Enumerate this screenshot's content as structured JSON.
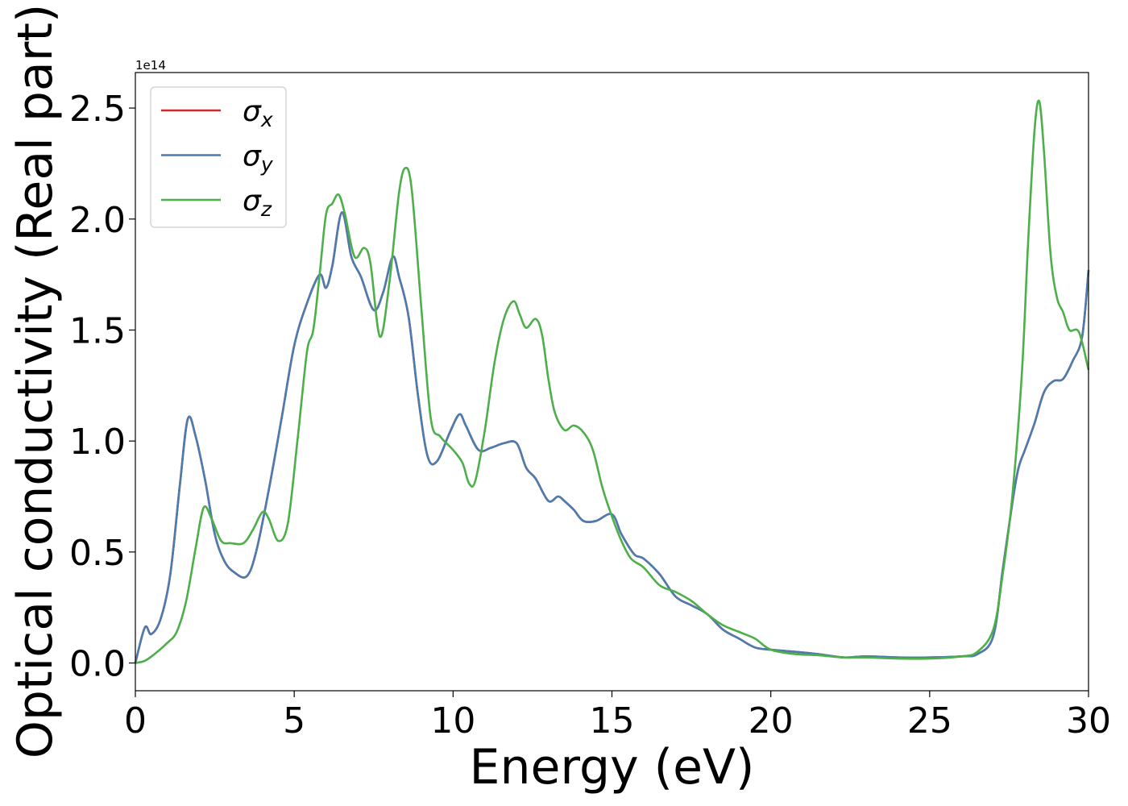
{
  "chart_data": {
    "type": "line",
    "title": "",
    "xlabel": "Energy (eV)",
    "ylabel": "Optical conductivity (Real part)",
    "offset_text": "1e14",
    "xlim": [
      0,
      30
    ],
    "ylim": [
      -0.125,
      2.66
    ],
    "xticks": [
      0,
      5,
      10,
      15,
      20,
      25,
      30
    ],
    "xtick_labels": [
      "0",
      "5",
      "10",
      "15",
      "20",
      "25",
      "30"
    ],
    "yticks": [
      0.0,
      0.5,
      1.0,
      1.5,
      2.0,
      2.5
    ],
    "ytick_labels": [
      "0.0",
      "0.5",
      "1.0",
      "1.5",
      "2.0",
      "2.5"
    ],
    "grid": false,
    "legend_position": "upper-left",
    "series": [
      {
        "name": "σx",
        "sym": "σ",
        "sub": "x",
        "color": "#d62728",
        "x": [
          0,
          0.3,
          0.5,
          0.8,
          1.1,
          1.4,
          1.65,
          1.9,
          2.2,
          2.5,
          2.8,
          3.1,
          3.5,
          3.8,
          4.2,
          4.6,
          5.0,
          5.4,
          5.8,
          6.0,
          6.2,
          6.5,
          6.8,
          7.1,
          7.5,
          7.8,
          8.1,
          8.3,
          8.6,
          8.9,
          9.2,
          9.5,
          9.9,
          10.2,
          10.4,
          10.8,
          11.2,
          11.6,
          12.0,
          12.3,
          12.6,
          13.0,
          13.3,
          13.5,
          13.8,
          14.1,
          14.5,
          15.0,
          15.3,
          15.7,
          16.0,
          16.5,
          17.0,
          17.5,
          18.0,
          18.5,
          19.0,
          19.5,
          20.0,
          20.8,
          21.5,
          22.3,
          23.0,
          24.0,
          25.0,
          26.0,
          26.5,
          27.0,
          27.3,
          27.6,
          27.8,
          28.0,
          28.3,
          28.6,
          28.9,
          29.2,
          29.5,
          29.8,
          30.0
        ],
        "y": [
          0.0,
          0.16,
          0.13,
          0.2,
          0.4,
          0.8,
          1.1,
          1.02,
          0.82,
          0.58,
          0.46,
          0.41,
          0.39,
          0.5,
          0.78,
          1.1,
          1.43,
          1.62,
          1.75,
          1.69,
          1.79,
          2.03,
          1.83,
          1.74,
          1.59,
          1.67,
          1.83,
          1.74,
          1.56,
          1.2,
          0.93,
          0.91,
          1.04,
          1.12,
          1.07,
          0.96,
          0.97,
          0.99,
          0.99,
          0.88,
          0.83,
          0.73,
          0.75,
          0.73,
          0.69,
          0.64,
          0.64,
          0.67,
          0.58,
          0.49,
          0.47,
          0.4,
          0.3,
          0.26,
          0.22,
          0.15,
          0.11,
          0.07,
          0.06,
          0.05,
          0.04,
          0.025,
          0.03,
          0.025,
          0.025,
          0.03,
          0.04,
          0.12,
          0.42,
          0.72,
          0.88,
          0.96,
          1.08,
          1.22,
          1.27,
          1.28,
          1.36,
          1.47,
          1.77
        ]
      },
      {
        "name": "σy",
        "sym": "σ",
        "sub": "y",
        "color": "#4a7cb0",
        "x": [
          0,
          0.3,
          0.5,
          0.8,
          1.1,
          1.4,
          1.65,
          1.9,
          2.2,
          2.5,
          2.8,
          3.1,
          3.5,
          3.8,
          4.2,
          4.6,
          5.0,
          5.4,
          5.8,
          6.0,
          6.2,
          6.5,
          6.8,
          7.1,
          7.5,
          7.8,
          8.1,
          8.3,
          8.6,
          8.9,
          9.2,
          9.5,
          9.9,
          10.2,
          10.4,
          10.8,
          11.2,
          11.6,
          12.0,
          12.3,
          12.6,
          13.0,
          13.3,
          13.5,
          13.8,
          14.1,
          14.5,
          15.0,
          15.3,
          15.7,
          16.0,
          16.5,
          17.0,
          17.5,
          18.0,
          18.5,
          19.0,
          19.5,
          20.0,
          20.8,
          21.5,
          22.3,
          23.0,
          24.0,
          25.0,
          26.0,
          26.5,
          27.0,
          27.3,
          27.6,
          27.8,
          28.0,
          28.3,
          28.6,
          28.9,
          29.2,
          29.5,
          29.8,
          30.0
        ],
        "y": [
          0.0,
          0.16,
          0.13,
          0.2,
          0.4,
          0.8,
          1.1,
          1.02,
          0.82,
          0.58,
          0.46,
          0.41,
          0.39,
          0.5,
          0.78,
          1.1,
          1.43,
          1.62,
          1.75,
          1.69,
          1.79,
          2.03,
          1.83,
          1.74,
          1.59,
          1.67,
          1.83,
          1.74,
          1.56,
          1.2,
          0.93,
          0.91,
          1.04,
          1.12,
          1.07,
          0.96,
          0.97,
          0.99,
          0.99,
          0.88,
          0.83,
          0.73,
          0.75,
          0.73,
          0.69,
          0.64,
          0.64,
          0.67,
          0.58,
          0.49,
          0.47,
          0.4,
          0.3,
          0.26,
          0.22,
          0.15,
          0.11,
          0.07,
          0.06,
          0.05,
          0.04,
          0.025,
          0.03,
          0.025,
          0.025,
          0.03,
          0.04,
          0.12,
          0.42,
          0.72,
          0.88,
          0.96,
          1.08,
          1.22,
          1.27,
          1.28,
          1.36,
          1.47,
          1.77
        ]
      },
      {
        "name": "σz",
        "sym": "σ",
        "sub": "z",
        "color": "#4daf4a",
        "x": [
          0,
          0.3,
          0.6,
          1.0,
          1.3,
          1.6,
          1.9,
          2.15,
          2.4,
          2.7,
          3.0,
          3.4,
          3.7,
          4.0,
          4.2,
          4.5,
          4.8,
          5.1,
          5.4,
          5.6,
          5.8,
          6.0,
          6.2,
          6.4,
          6.6,
          6.9,
          7.2,
          7.4,
          7.7,
          8.0,
          8.3,
          8.5,
          8.7,
          9.0,
          9.3,
          9.6,
          10.0,
          10.3,
          10.5,
          10.7,
          11.0,
          11.3,
          11.6,
          11.9,
          12.1,
          12.3,
          12.6,
          12.8,
          13.0,
          13.2,
          13.5,
          13.8,
          14.1,
          14.4,
          14.7,
          15.0,
          15.3,
          15.6,
          16.0,
          16.5,
          17.0,
          17.5,
          18.0,
          18.5,
          19.0,
          19.5,
          20.0,
          20.8,
          21.5,
          22.3,
          23.0,
          24.0,
          25.0,
          26.0,
          26.5,
          27.0,
          27.3,
          27.6,
          27.9,
          28.1,
          28.3,
          28.45,
          28.6,
          28.8,
          29.0,
          29.2,
          29.4,
          29.7,
          30.0
        ],
        "y": [
          0.0,
          0.01,
          0.04,
          0.09,
          0.14,
          0.28,
          0.52,
          0.7,
          0.65,
          0.55,
          0.54,
          0.54,
          0.6,
          0.68,
          0.65,
          0.55,
          0.63,
          1.0,
          1.4,
          1.5,
          1.75,
          2.02,
          2.07,
          2.11,
          2.02,
          1.83,
          1.87,
          1.8,
          1.47,
          1.72,
          2.12,
          2.23,
          2.13,
          1.6,
          1.1,
          1.02,
          0.96,
          0.9,
          0.81,
          0.82,
          1.05,
          1.35,
          1.55,
          1.63,
          1.57,
          1.51,
          1.55,
          1.48,
          1.28,
          1.13,
          1.05,
          1.07,
          1.04,
          0.96,
          0.79,
          0.66,
          0.55,
          0.47,
          0.43,
          0.35,
          0.32,
          0.28,
          0.22,
          0.17,
          0.14,
          0.11,
          0.06,
          0.04,
          0.035,
          0.025,
          0.025,
          0.02,
          0.02,
          0.03,
          0.05,
          0.15,
          0.4,
          0.75,
          1.3,
          1.9,
          2.4,
          2.53,
          2.3,
          1.85,
          1.65,
          1.58,
          1.5,
          1.49,
          1.32
        ]
      }
    ]
  }
}
